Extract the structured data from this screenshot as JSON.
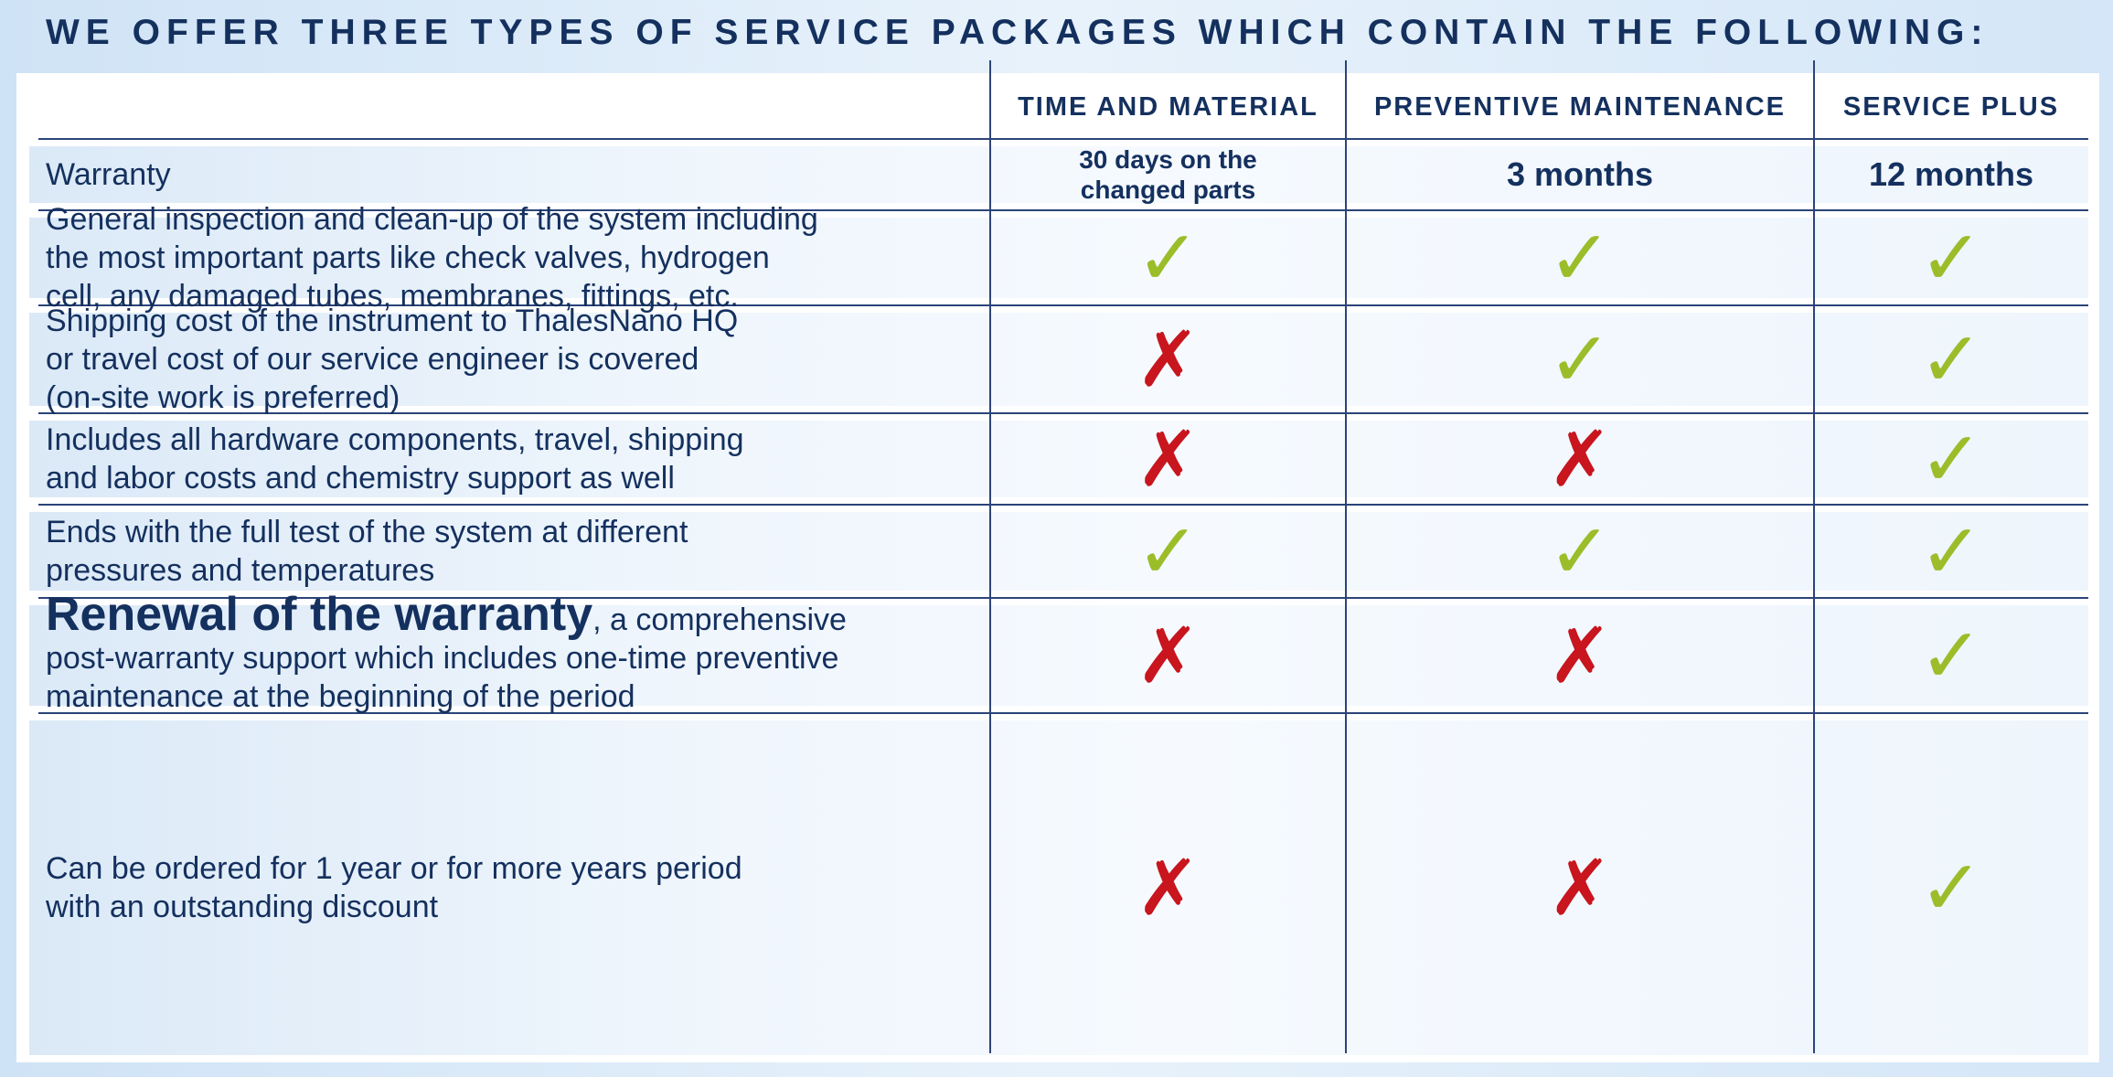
{
  "heading": "WE OFFER THREE TYPES OF SERVICE PACKAGES WHICH CONTAIN THE FOLLOWING:",
  "columns": [
    "TIME AND MATERIAL",
    "PREVENTIVE MAINTENANCE",
    "SERVICE PLUS"
  ],
  "warranty": {
    "label": "Warranty",
    "values": [
      "30 days on the\nchanged parts",
      "3 months",
      "12 months"
    ]
  },
  "rows": [
    {
      "lines": [
        "General inspection and clean-up of the system including",
        "the most important parts like check valves, hydrogen",
        "cell, any damaged tubes, membranes, fittings, etc."
      ],
      "marks": [
        "check",
        "check",
        "check"
      ]
    },
    {
      "lines": [
        "Shipping cost of the instrument to ThalesNano HQ",
        "or travel cost of our service engineer is covered",
        "(on-site work is preferred)"
      ],
      "marks": [
        "cross",
        "check",
        "check"
      ]
    },
    {
      "lines": [
        "Includes all hardware components, travel, shipping",
        "and labor costs and chemistry support as well"
      ],
      "marks": [
        "cross",
        "cross",
        "check"
      ]
    },
    {
      "lines": [
        "Ends with the full test of the system at different",
        "pressures and temperatures"
      ],
      "marks": [
        "check",
        "check",
        "check"
      ]
    },
    {
      "bold_lead": "Renewal of the warranty",
      "lead_rest": ", a comprehensive",
      "lines": [
        "post-warranty support which includes one-time preventive",
        "maintenance at the beginning of the period"
      ],
      "marks": [
        "cross",
        "cross",
        "check"
      ]
    },
    {
      "lines": [
        "Can be ordered for 1 year or for more years period",
        "with an outstanding discount"
      ],
      "marks": [
        "cross",
        "cross",
        "check"
      ]
    }
  ],
  "icons": {
    "check": "✓",
    "cross": "✗"
  },
  "colors": {
    "navy": "#14305e",
    "check": "#9bbd2a",
    "cross": "#c8151e",
    "background": "#cfe3f6"
  }
}
